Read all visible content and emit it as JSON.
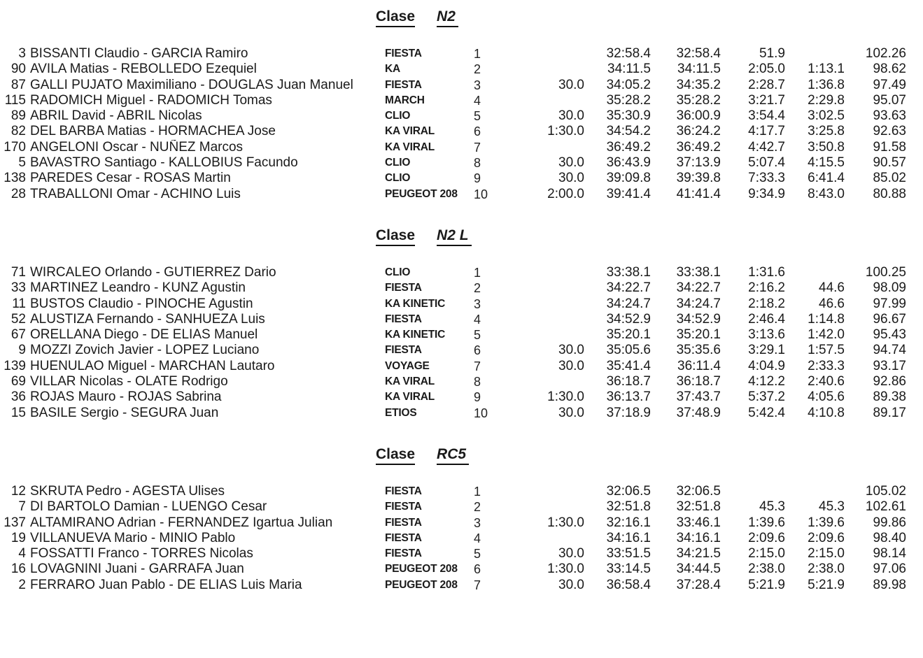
{
  "labels": {
    "class_label": "Clase"
  },
  "colors": {
    "text": "#1a1a1a",
    "background": "#ffffff"
  },
  "sections": [
    {
      "class_name": "N2",
      "rows": [
        {
          "num": "3",
          "crew": "BISSANTI Claudio - GARCIA Ramiro",
          "car": "FIESTA",
          "pos": "1",
          "penalty": "",
          "time": "32:58.4",
          "total": "32:58.4",
          "diff1": "51.9",
          "diff2": "",
          "coef": "102.26"
        },
        {
          "num": "90",
          "crew": "AVILA Matias - REBOLLEDO Ezequiel",
          "car": "KA",
          "pos": "2",
          "penalty": "",
          "time": "34:11.5",
          "total": "34:11.5",
          "diff1": "2:05.0",
          "diff2": "1:13.1",
          "coef": "98.62"
        },
        {
          "num": "87",
          "crew": "GALLI PUJATO Maximiliano - DOUGLAS Juan Manuel",
          "car": "FIESTA",
          "pos": "3",
          "penalty": "30.0",
          "time": "34:05.2",
          "total": "34:35.2",
          "diff1": "2:28.7",
          "diff2": "1:36.8",
          "coef": "97.49"
        },
        {
          "num": "115",
          "crew": "RADOMICH Miguel - RADOMICH Tomas",
          "car": "MARCH",
          "pos": "4",
          "penalty": "",
          "time": "35:28.2",
          "total": "35:28.2",
          "diff1": "3:21.7",
          "diff2": "2:29.8",
          "coef": "95.07"
        },
        {
          "num": "89",
          "crew": "ABRIL David - ABRIL Nicolas",
          "car": "CLIO",
          "pos": "5",
          "penalty": "30.0",
          "time": "35:30.9",
          "total": "36:00.9",
          "diff1": "3:54.4",
          "diff2": "3:02.5",
          "coef": "93.63"
        },
        {
          "num": "82",
          "crew": "DEL BARBA Matias - HORMACHEA Jose",
          "car": "KA VIRAL",
          "pos": "6",
          "penalty": "1:30.0",
          "time": "34:54.2",
          "total": "36:24.2",
          "diff1": "4:17.7",
          "diff2": "3:25.8",
          "coef": "92.63"
        },
        {
          "num": "170",
          "crew": "ANGELONI Oscar - NUÑEZ Marcos",
          "car": "KA VIRAL",
          "pos": "7",
          "penalty": "",
          "time": "36:49.2",
          "total": "36:49.2",
          "diff1": "4:42.7",
          "diff2": "3:50.8",
          "coef": "91.58"
        },
        {
          "num": "5",
          "crew": "BAVASTRO Santiago - KALLOBIUS Facundo",
          "car": "CLIO",
          "pos": "8",
          "penalty": "30.0",
          "time": "36:43.9",
          "total": "37:13.9",
          "diff1": "5:07.4",
          "diff2": "4:15.5",
          "coef": "90.57"
        },
        {
          "num": "138",
          "crew": "PAREDES Cesar - ROSAS Martin",
          "car": "CLIO",
          "pos": "9",
          "penalty": "30.0",
          "time": "39:09.8",
          "total": "39:39.8",
          "diff1": "7:33.3",
          "diff2": "6:41.4",
          "coef": "85.02"
        },
        {
          "num": "28",
          "crew": "TRABALLONI Omar - ACHINO Luis",
          "car": "PEUGEOT 208",
          "pos": "10",
          "penalty": "2:00.0",
          "time": "39:41.4",
          "total": "41:41.4",
          "diff1": "9:34.9",
          "diff2": "8:43.0",
          "coef": "80.88"
        }
      ]
    },
    {
      "class_name": "N2 L",
      "rows": [
        {
          "num": "71",
          "crew": "WIRCALEO Orlando - GUTIERREZ Dario",
          "car": "CLIO",
          "pos": "1",
          "penalty": "",
          "time": "33:38.1",
          "total": "33:38.1",
          "diff1": "1:31.6",
          "diff2": "",
          "coef": "100.25"
        },
        {
          "num": "33",
          "crew": "MARTINEZ Leandro - KUNZ Agustin",
          "car": "FIESTA",
          "pos": "2",
          "penalty": "",
          "time": "34:22.7",
          "total": "34:22.7",
          "diff1": "2:16.2",
          "diff2": "44.6",
          "coef": "98.09"
        },
        {
          "num": "11",
          "crew": "BUSTOS Claudio - PINOCHE Agustin",
          "car": "KA KINETIC",
          "pos": "3",
          "penalty": "",
          "time": "34:24.7",
          "total": "34:24.7",
          "diff1": "2:18.2",
          "diff2": "46.6",
          "coef": "97.99"
        },
        {
          "num": "52",
          "crew": "ALUSTIZA Fernando - SANHUEZA Luis",
          "car": "FIESTA",
          "pos": "4",
          "penalty": "",
          "time": "34:52.9",
          "total": "34:52.9",
          "diff1": "2:46.4",
          "diff2": "1:14.8",
          "coef": "96.67"
        },
        {
          "num": "67",
          "crew": "ORELLANA Diego - DE ELIAS Manuel",
          "car": "KA KINETIC",
          "pos": "5",
          "penalty": "",
          "time": "35:20.1",
          "total": "35:20.1",
          "diff1": "3:13.6",
          "diff2": "1:42.0",
          "coef": "95.43"
        },
        {
          "num": "9",
          "crew": "MOZZI Zovich Javier - LOPEZ Luciano",
          "car": "FIESTA",
          "pos": "6",
          "penalty": "30.0",
          "time": "35:05.6",
          "total": "35:35.6",
          "diff1": "3:29.1",
          "diff2": "1:57.5",
          "coef": "94.74"
        },
        {
          "num": "139",
          "crew": "HUENULAO Miguel - MARCHAN Lautaro",
          "car": "VOYAGE",
          "pos": "7",
          "penalty": "30.0",
          "time": "35:41.4",
          "total": "36:11.4",
          "diff1": "4:04.9",
          "diff2": "2:33.3",
          "coef": "93.17"
        },
        {
          "num": "69",
          "crew": "VILLAR Nicolas - OLATE Rodrigo",
          "car": "KA VIRAL",
          "pos": "8",
          "penalty": "",
          "time": "36:18.7",
          "total": "36:18.7",
          "diff1": "4:12.2",
          "diff2": "2:40.6",
          "coef": "92.86"
        },
        {
          "num": "36",
          "crew": "ROJAS Mauro - ROJAS Sabrina",
          "car": "KA VIRAL",
          "pos": "9",
          "penalty": "1:30.0",
          "time": "36:13.7",
          "total": "37:43.7",
          "diff1": "5:37.2",
          "diff2": "4:05.6",
          "coef": "89.38"
        },
        {
          "num": "15",
          "crew": "BASILE Sergio - SEGURA Juan",
          "car": "ETIOS",
          "pos": "10",
          "penalty": "30.0",
          "time": "37:18.9",
          "total": "37:48.9",
          "diff1": "5:42.4",
          "diff2": "4:10.8",
          "coef": "89.17"
        }
      ]
    },
    {
      "class_name": "RC5",
      "rows": [
        {
          "num": "12",
          "crew": "SKRUTA Pedro - AGESTA Ulises",
          "car": "FIESTA",
          "pos": "1",
          "penalty": "",
          "time": "32:06.5",
          "total": "32:06.5",
          "diff1": "",
          "diff2": "",
          "coef": "105.02"
        },
        {
          "num": "7",
          "crew": "DI BARTOLO Damian - LUENGO Cesar",
          "car": "FIESTA",
          "pos": "2",
          "penalty": "",
          "time": "32:51.8",
          "total": "32:51.8",
          "diff1": "45.3",
          "diff2": "45.3",
          "coef": "102.61"
        },
        {
          "num": "137",
          "crew": "ALTAMIRANO Adrian - FERNANDEZ Igartua Julian",
          "car": "FIESTA",
          "pos": "3",
          "penalty": "1:30.0",
          "time": "32:16.1",
          "total": "33:46.1",
          "diff1": "1:39.6",
          "diff2": "1:39.6",
          "coef": "99.86"
        },
        {
          "num": "19",
          "crew": "VILLANUEVA Mario - MINIO Pablo",
          "car": "FIESTA",
          "pos": "4",
          "penalty": "",
          "time": "34:16.1",
          "total": "34:16.1",
          "diff1": "2:09.6",
          "diff2": "2:09.6",
          "coef": "98.40"
        },
        {
          "num": "4",
          "crew": "FOSSATTI Franco - TORRES Nicolas",
          "car": "FIESTA",
          "pos": "5",
          "penalty": "30.0",
          "time": "33:51.5",
          "total": "34:21.5",
          "diff1": "2:15.0",
          "diff2": "2:15.0",
          "coef": "98.14"
        },
        {
          "num": "16",
          "crew": "LOVAGNINI Juani - GARRAFA Juan",
          "car": "PEUGEOT 208",
          "pos": "6",
          "penalty": "1:30.0",
          "time": "33:14.5",
          "total": "34:44.5",
          "diff1": "2:38.0",
          "diff2": "2:38.0",
          "coef": "97.06"
        },
        {
          "num": "2",
          "crew": "FERRARO Juan Pablo - DE ELIAS Luis Maria",
          "car": "PEUGEOT 208",
          "pos": "7",
          "penalty": "30.0",
          "time": "36:58.4",
          "total": "37:28.4",
          "diff1": "5:21.9",
          "diff2": "5:21.9",
          "coef": "89.98"
        }
      ]
    }
  ]
}
